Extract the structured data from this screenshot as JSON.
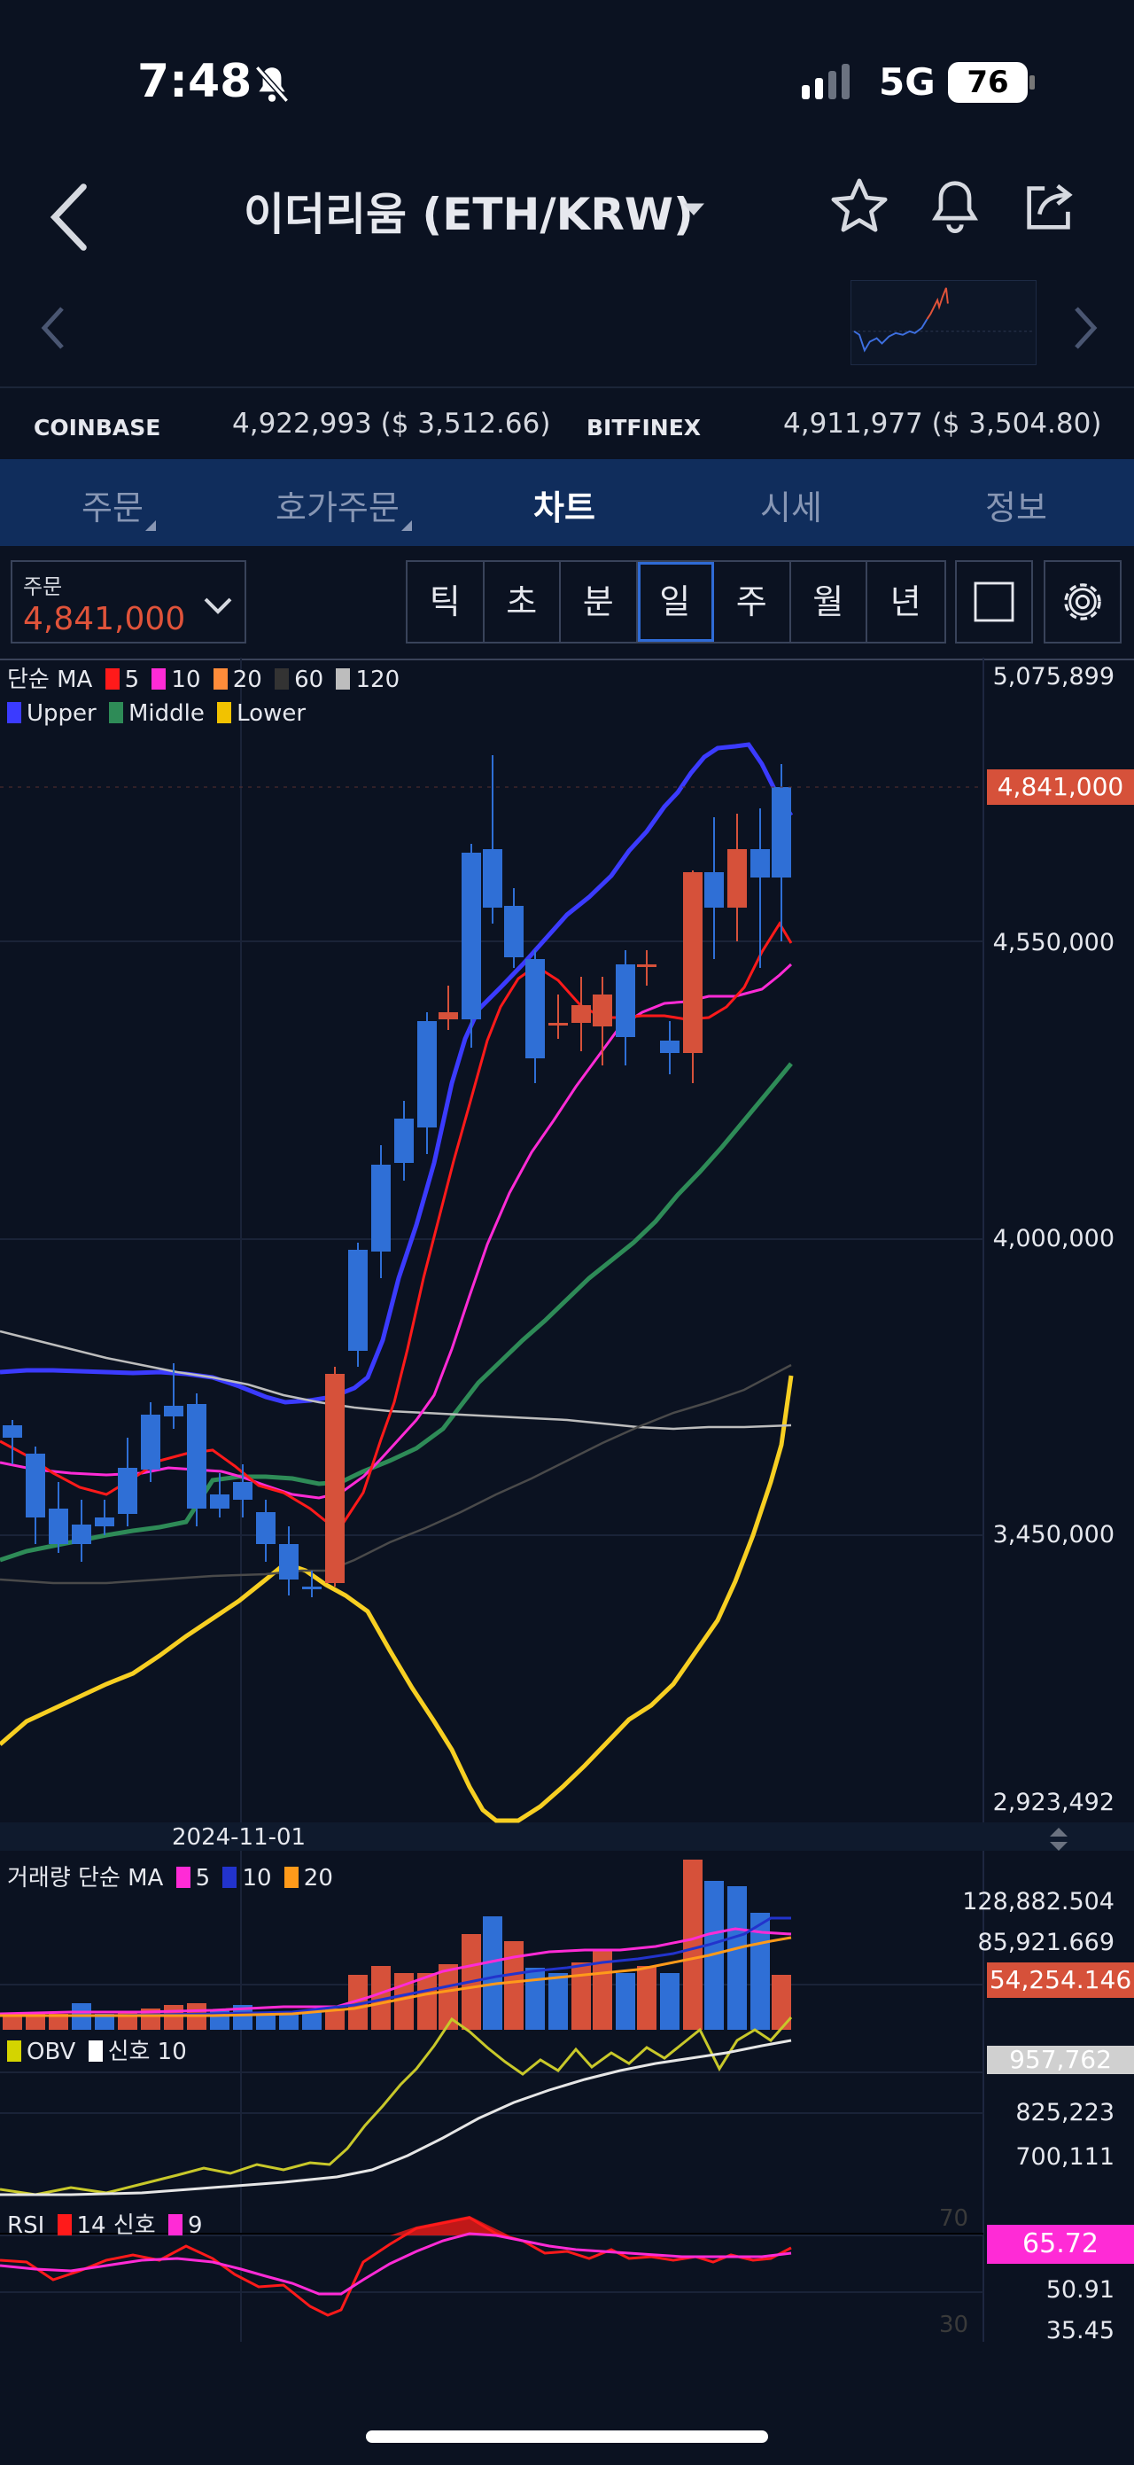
{
  "status": {
    "time": "7:48",
    "network": "5G",
    "battery": "76"
  },
  "header": {
    "title": "이더리움 (ETH/KRW)"
  },
  "exchanges": [
    {
      "name": "COINBASE",
      "price": "4,922,993 ($ 3,512.66)"
    },
    {
      "name": "BITFINEX",
      "price": "4,911,977 ($ 3,504.80)"
    }
  ],
  "tabs": [
    "주문",
    "호가주문",
    "차트",
    "시세",
    "정보"
  ],
  "active_tab": "차트",
  "order": {
    "label": "주문",
    "value": "4,841,000"
  },
  "periods": [
    "틱",
    "초",
    "분",
    "일",
    "주",
    "월",
    "년"
  ],
  "selected_period": "일",
  "main_legend": {
    "ma_prefix": "단순 MA",
    "ma": [
      {
        "label": "5",
        "color": "#ff1a1a"
      },
      {
        "label": "10",
        "color": "#ff2bd6"
      },
      {
        "label": "20",
        "color": "#ff8c3a"
      },
      {
        "label": "60",
        "color": "#333333"
      },
      {
        "label": "120",
        "color": "#bdbdbd"
      }
    ],
    "bb": [
      {
        "label": "Upper",
        "color": "#3b3bff"
      },
      {
        "label": "Middle",
        "color": "#2e8b57"
      },
      {
        "label": "Lower",
        "color": "#f2c200"
      }
    ]
  },
  "price_axis": [
    "5,075,899",
    "4,550,000",
    "4,000,000",
    "3,450,000",
    "2,923,492"
  ],
  "current_price_tag": "4,841,000",
  "date_label": "2024-11-01",
  "volume_legend": {
    "prefix": "거래량 단순 MA",
    "ma": [
      {
        "label": "5",
        "color": "#ff2bd6"
      },
      {
        "label": "10",
        "color": "#2233cc"
      },
      {
        "label": "20",
        "color": "#ff9a1a"
      }
    ]
  },
  "volume_axis": [
    "128,882.504",
    "85,921.669"
  ],
  "volume_tag": "54,254.146",
  "obv_legend": {
    "a": "OBV",
    "a_color": "#d4d400",
    "b": "신호 10",
    "b_color": "#ffffff"
  },
  "obv_axis": [
    "957,762",
    "825,223",
    "700,111"
  ],
  "rsi_legend": {
    "a": "RSI",
    "a_color": "#ff1a1a",
    "a_period": "14",
    "b": "신호",
    "b_color": "#ff2bd6",
    "b_period": "9"
  },
  "rsi_axis": [
    "65.72",
    "50.91",
    "35.45"
  ],
  "rsi_levels": [
    "70",
    "30"
  ],
  "colors": {
    "up": "#d6513a",
    "down": "#2f6fd6",
    "accent": "#2f6bd6",
    "price_red": "#e0533a"
  }
}
